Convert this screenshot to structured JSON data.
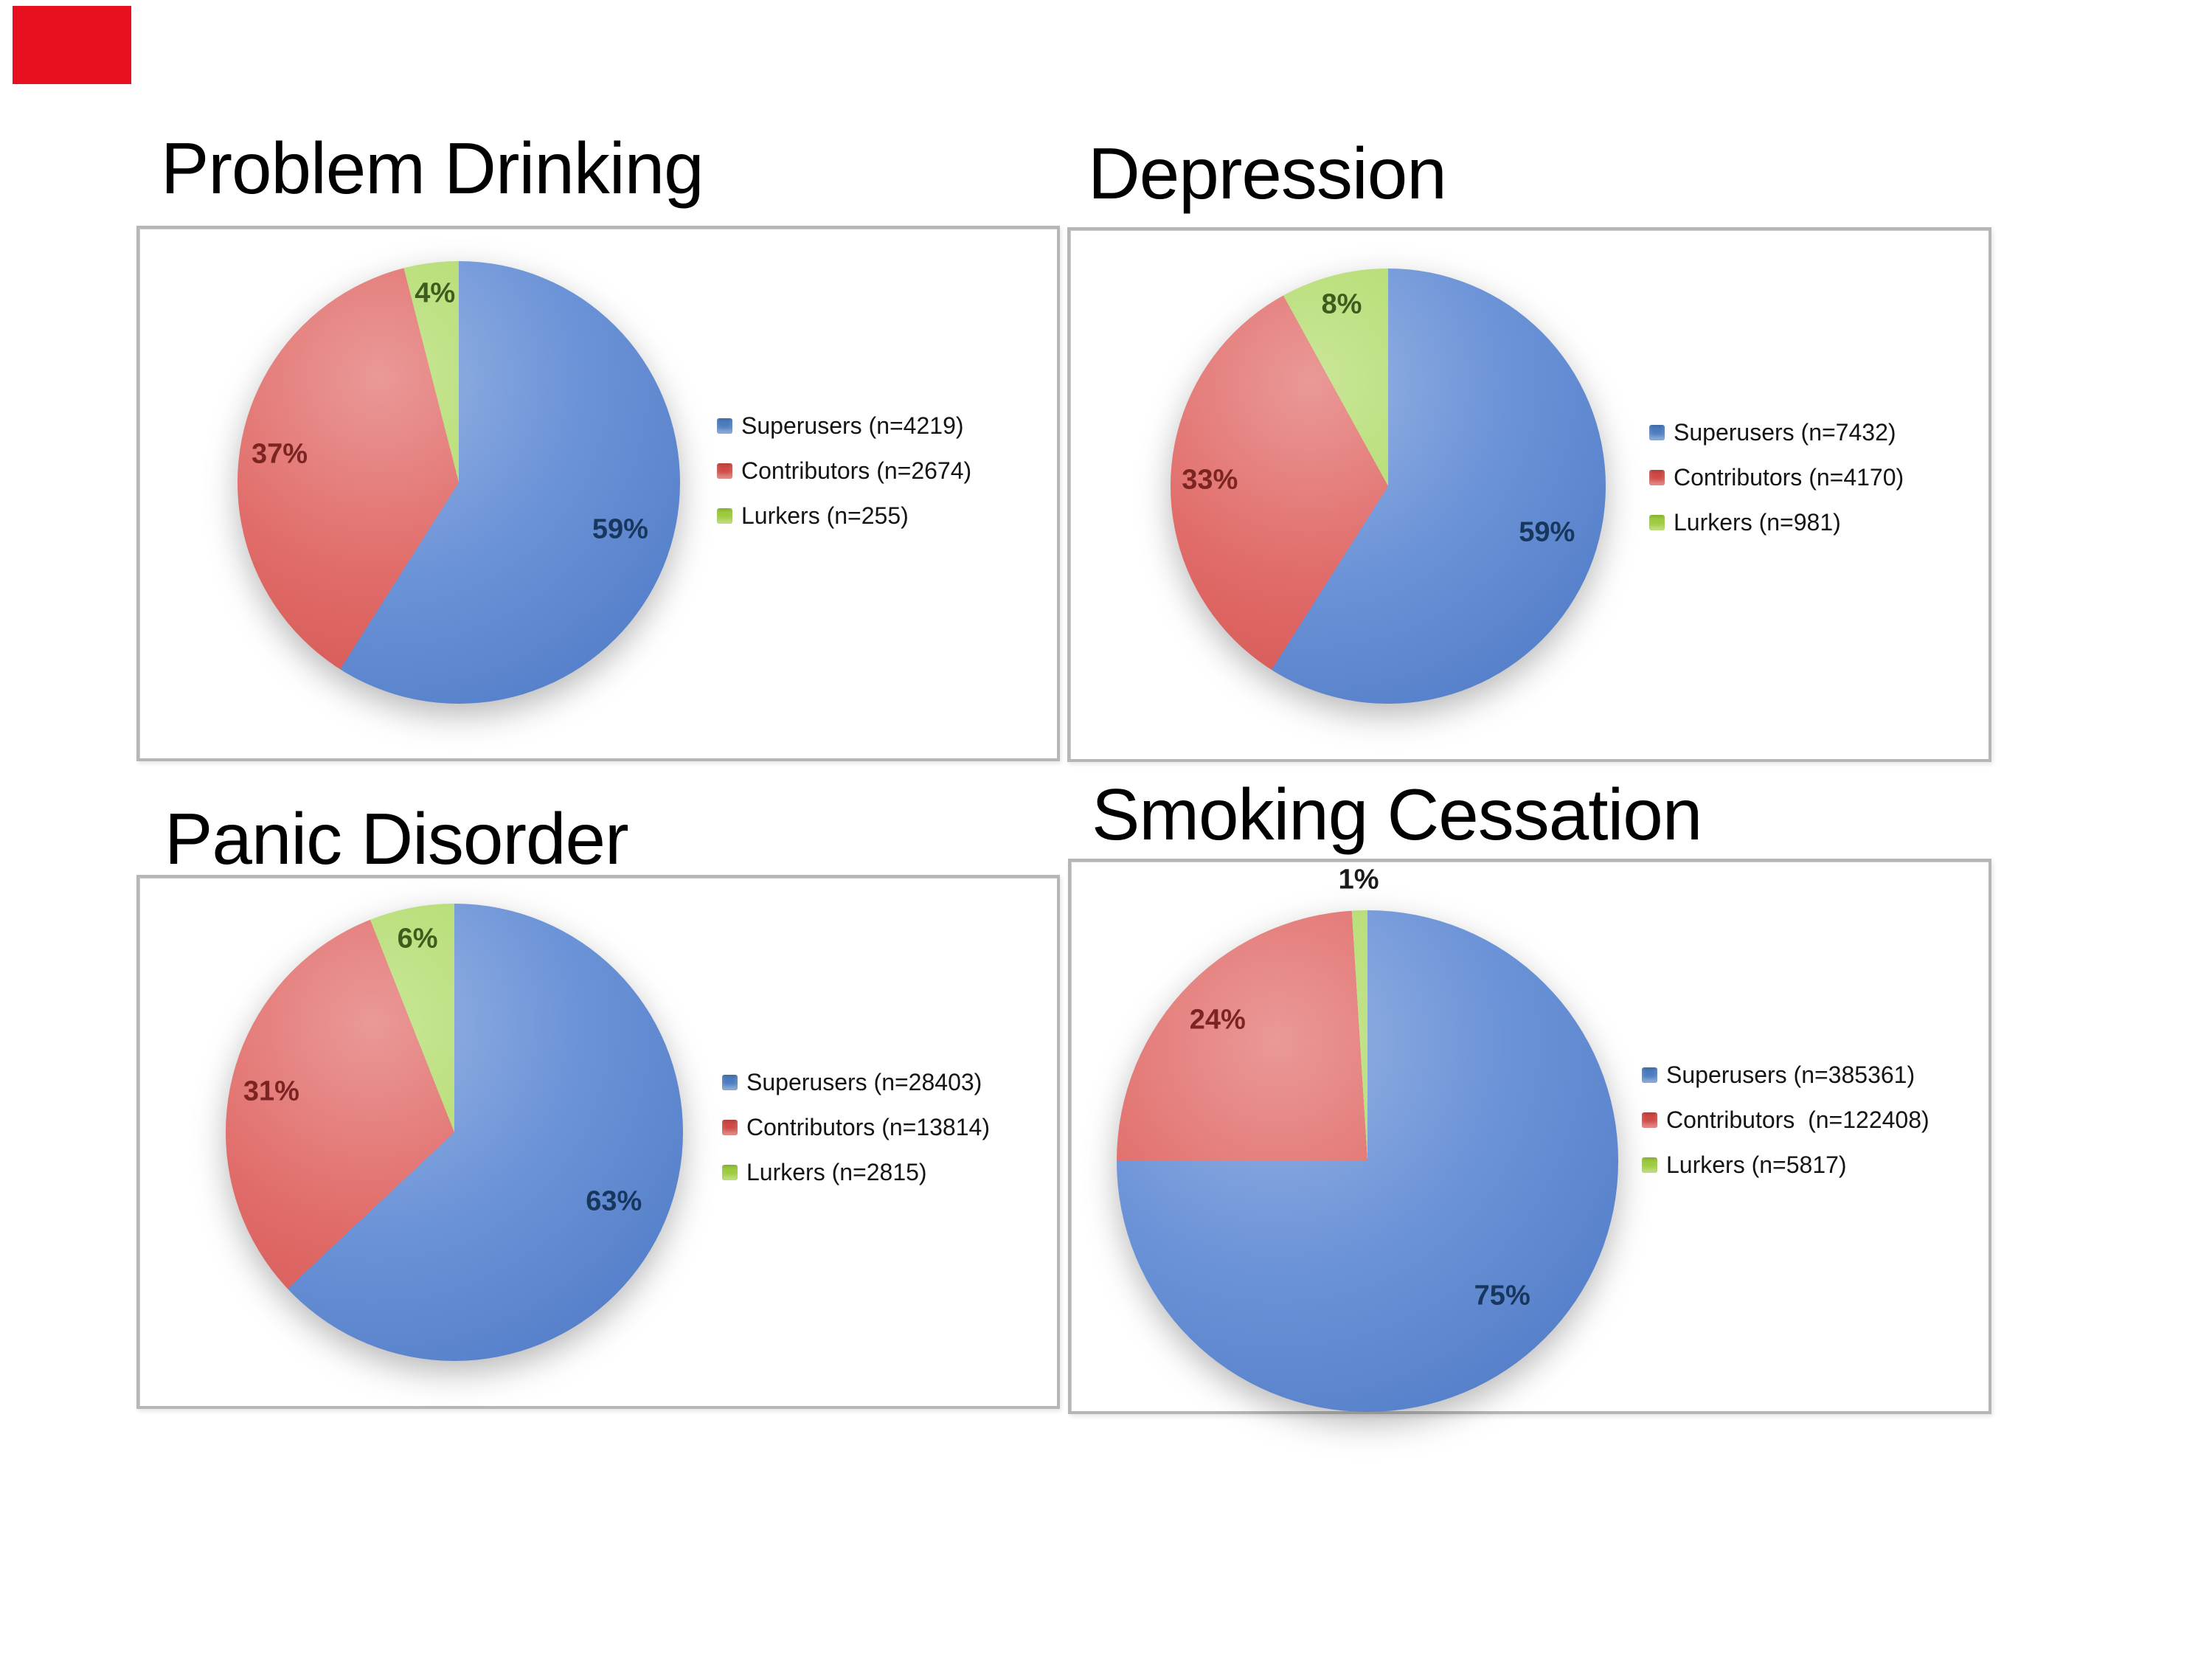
{
  "red_marker": {
    "color": "#e8101e"
  },
  "colors": {
    "outside_label": "#1a1a1a",
    "frame_border": "#b6b6b6",
    "background": "#ffffff"
  },
  "palette": [
    {
      "series": "Superusers",
      "slice_color": "#5b87d3",
      "swatch_color": "#4c7cc0",
      "label_color": "#17375e"
    },
    {
      "series": "Contributors",
      "slice_color": "#dd5b58",
      "swatch_color": "#cf4a46",
      "label_color": "#7c2422"
    },
    {
      "series": "Lurkers",
      "slice_color": "#a9d75a",
      "swatch_color": "#9ccb3c",
      "label_color": "#3f5b1e"
    }
  ],
  "chart_data": [
    {
      "type": "pie",
      "title": "Problem Drinking",
      "legend_position": "right",
      "slices": [
        {
          "label": "Superusers (n=4219)",
          "series": "Superusers",
          "n": 4219,
          "pct": 59,
          "pct_label": "59%"
        },
        {
          "label": "Contributors (n=2674)",
          "series": "Contributors",
          "n": 2674,
          "pct": 37,
          "pct_label": "37%"
        },
        {
          "label": "Lurkers (n=255)",
          "series": "Lurkers",
          "n": 255,
          "pct": 4,
          "pct_label": "4%"
        }
      ]
    },
    {
      "type": "pie",
      "title": "Depression",
      "legend_position": "right",
      "slices": [
        {
          "label": "Superusers (n=7432)",
          "series": "Superusers",
          "n": 7432,
          "pct": 59,
          "pct_label": "59%"
        },
        {
          "label": "Contributors (n=4170)",
          "series": "Contributors",
          "n": 4170,
          "pct": 33,
          "pct_label": "33%"
        },
        {
          "label": "Lurkers (n=981)",
          "series": "Lurkers",
          "n": 981,
          "pct": 8,
          "pct_label": "8%"
        }
      ]
    },
    {
      "type": "pie",
      "title": "Panic Disorder",
      "legend_position": "right",
      "slices": [
        {
          "label": "Superusers (n=28403)",
          "series": "Superusers",
          "n": 28403,
          "pct": 63,
          "pct_label": "63%"
        },
        {
          "label": "Contributors (n=13814)",
          "series": "Contributors",
          "n": 13814,
          "pct": 31,
          "pct_label": "31%"
        },
        {
          "label": "Lurkers (n=2815)",
          "series": "Lurkers",
          "n": 2815,
          "pct": 6,
          "pct_label": "6%"
        }
      ]
    },
    {
      "type": "pie",
      "title": "Smoking Cessation",
      "legend_position": "right",
      "slices": [
        {
          "label": "Superusers (n=385361)",
          "series": "Superusers",
          "n": 385361,
          "pct": 75,
          "pct_label": "75%"
        },
        {
          "label": "Contributors  (n=122408)",
          "series": "Contributors",
          "n": 122408,
          "pct": 24,
          "pct_label": "24%"
        },
        {
          "label": "Lurkers (n=5817)",
          "series": "Lurkers",
          "n": 5817,
          "pct": 1,
          "pct_label": "1%"
        }
      ]
    }
  ]
}
